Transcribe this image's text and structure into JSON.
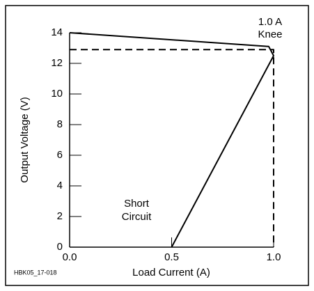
{
  "chart_data": {
    "type": "line",
    "xlabel": "Load Current (A)",
    "ylabel": "Output Voltage (V)",
    "annotations": [
      "1.0 A",
      "Knee",
      "Short",
      "Circuit"
    ],
    "footer": "HBK05_17-018",
    "series": [
      {
        "color": "#000000",
        "dashed": false,
        "x": [
          0,
          0.976,
          1.0,
          0.5
        ],
        "values": [
          14,
          13.1,
          12.5,
          0
        ]
      },
      {
        "color": "#000000",
        "dashed": true,
        "x": [
          0,
          1.0,
          1.0
        ],
        "values": [
          12.9,
          12.9,
          0
        ]
      }
    ],
    "xlim": [
      0,
      1
    ],
    "ylim": [
      0,
      14
    ],
    "xticks": [
      {
        "value": 0,
        "label": "0.0"
      },
      0.5,
      {
        "value": 1,
        "label": "1.0"
      }
    ],
    "yticks": [
      0,
      2,
      4,
      6,
      8,
      10,
      12,
      14
    ]
  }
}
